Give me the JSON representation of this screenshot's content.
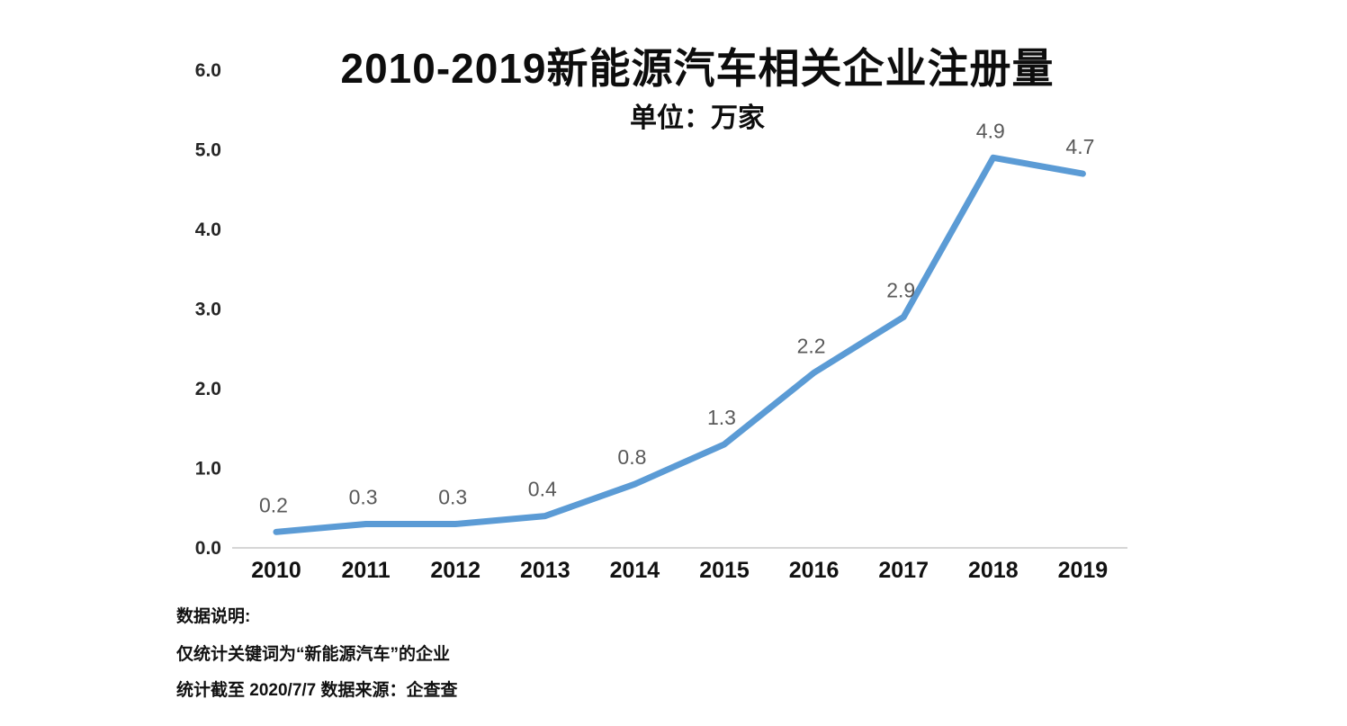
{
  "chart_data": {
    "type": "line",
    "title": "2010-2019新能源汽车相关企业注册量",
    "subtitle": "单位：万家",
    "categories": [
      "2010",
      "2011",
      "2012",
      "2013",
      "2014",
      "2015",
      "2016",
      "2017",
      "2018",
      "2019"
    ],
    "values": [
      0.2,
      0.3,
      0.3,
      0.4,
      0.8,
      1.3,
      2.2,
      2.9,
      4.9,
      4.7
    ],
    "data_labels": [
      "0.2",
      "0.3",
      "0.3",
      "0.4",
      "0.8",
      "1.3",
      "2.2",
      "2.9",
      "4.9",
      "4.7"
    ],
    "y_ticks": [
      "0.0",
      "1.0",
      "2.0",
      "3.0",
      "4.0",
      "5.0",
      "6.0"
    ],
    "ylim": [
      0,
      6
    ],
    "xlabel": "",
    "ylabel": "",
    "grid": false,
    "legend_position": "none",
    "line_color": "#5B9BD5",
    "axis_color": "#D6D6D6",
    "data_label_color": "#595959"
  },
  "footer": {
    "heading": "数据说明:",
    "scope_note": "仅统计关键词为“新能源汽车”的企业",
    "source_note": "统计截至 2020/7/7  数据来源：企查查"
  }
}
